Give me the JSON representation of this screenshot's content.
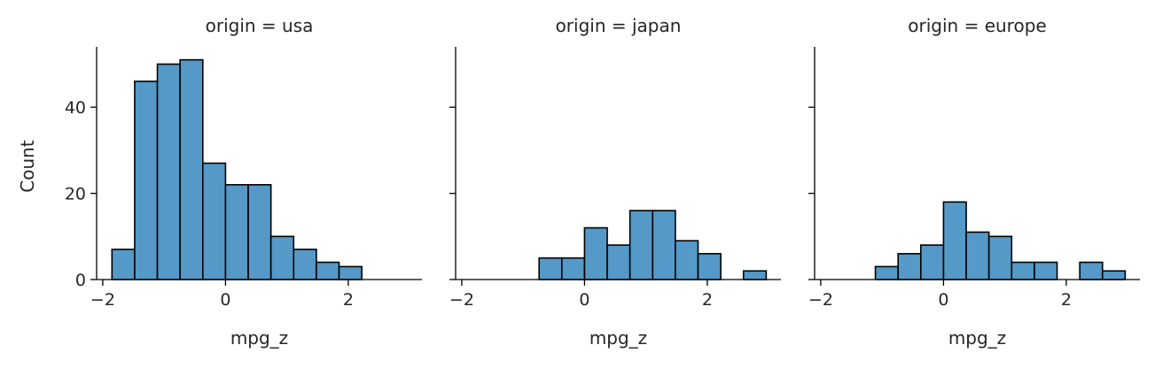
{
  "chart_data": {
    "type": "bar",
    "subtype": "histogram-facets",
    "bar_color": "#5499c7",
    "edge_color": "#000000",
    "shared_ylabel": "Count",
    "ylim": [
      0,
      54
    ],
    "yticks": [
      0,
      20,
      40
    ],
    "xlim": [
      -2.1,
      3.2
    ],
    "xticks": [
      -2,
      0,
      2
    ],
    "bin_edges": [
      -1.85,
      -1.48,
      -1.11,
      -0.74,
      -0.37,
      0.0,
      0.37,
      0.74,
      1.11,
      1.48,
      1.85,
      2.22,
      2.59,
      2.96
    ],
    "panels": [
      {
        "title": "origin = usa",
        "xlabel": "mpg_z",
        "counts": [
          7,
          46,
          50,
          51,
          27,
          22,
          22,
          10,
          7,
          4,
          3,
          0,
          0
        ]
      },
      {
        "title": "origin = japan",
        "xlabel": "mpg_z",
        "counts": [
          0,
          0,
          0,
          5,
          5,
          12,
          8,
          16,
          16,
          9,
          6,
          0,
          2
        ]
      },
      {
        "title": "origin = europe",
        "xlabel": "mpg_z",
        "counts": [
          0,
          0,
          3,
          6,
          8,
          18,
          11,
          10,
          4,
          4,
          0,
          4,
          2
        ]
      }
    ]
  }
}
